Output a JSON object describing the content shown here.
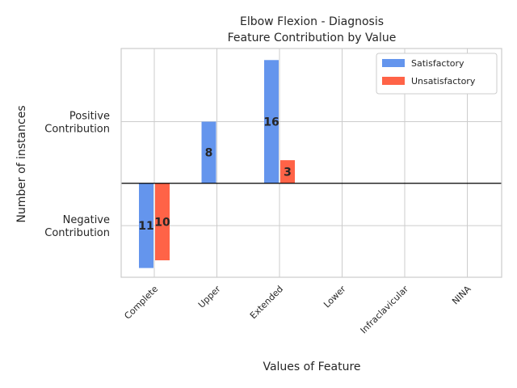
{
  "chart_data": {
    "type": "bar",
    "title": "Elbow Flexion - Diagnosis",
    "subtitle": "Feature Contribution by Value",
    "xlabel": "Values of Feature",
    "ylabel": "Number of instances",
    "categories": [
      "Complete",
      "Upper",
      "Extended",
      "Lower",
      "Infraclavicular",
      "NINA"
    ],
    "series": [
      {
        "name": "Satisfactory",
        "color": "#6495ed",
        "values": [
          -11,
          8,
          16,
          0,
          0,
          0
        ]
      },
      {
        "name": "Unsatisfactory",
        "color": "#ff6347",
        "values": [
          -10,
          0,
          3,
          0,
          0,
          0
        ]
      }
    ],
    "bar_labels": [
      {
        "category": "Complete",
        "series": "Satisfactory",
        "text": "11"
      },
      {
        "category": "Complete",
        "series": "Unsatisfactory",
        "text": "10"
      },
      {
        "category": "Upper",
        "series": "Satisfactory",
        "text": "8"
      },
      {
        "category": "Extended",
        "series": "Satisfactory",
        "text": "16"
      },
      {
        "category": "Extended",
        "series": "Unsatisfactory",
        "text": "3"
      }
    ],
    "yticks": [
      {
        "value": 8,
        "label": [
          "Positive",
          "Contribution"
        ]
      },
      {
        "value": -5.5,
        "label": [
          "Negative",
          "Contribution"
        ]
      }
    ],
    "ylim": [
      -12.2,
      17.5
    ],
    "grid": true,
    "legend_position": "top-right",
    "zero_line": true
  }
}
